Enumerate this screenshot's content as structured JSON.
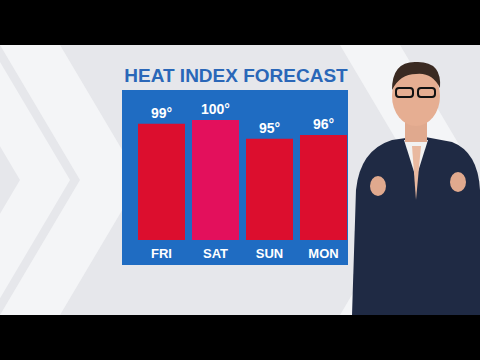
{
  "chart_data": {
    "type": "bar",
    "title": "HEAT INDEX FORECAST",
    "categories": [
      "FRI",
      "SAT",
      "SUN",
      "MON"
    ],
    "values": [
      99,
      100,
      95,
      96
    ],
    "value_labels": [
      "99°",
      "100°",
      "95°",
      "96°"
    ],
    "colors": [
      "#dc0e2e",
      "#e3105c",
      "#dc0e2e",
      "#dc0e2e"
    ],
    "ylim": [
      68,
      104
    ],
    "data_labels": true,
    "tick_labels": false,
    "grid": false
  }
}
